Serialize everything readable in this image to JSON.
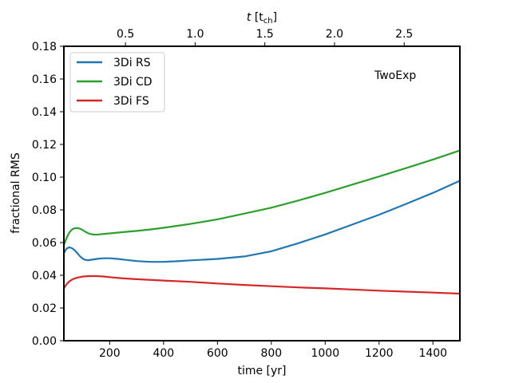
{
  "chart_data": {
    "type": "line",
    "xlabel": "time [yr]",
    "ylabel": "fractional RMS",
    "top_xlabel_var": "t",
    "top_xlabel_unit": "[t",
    "top_xlabel_sub": "ch",
    "top_xlabel_close": "]",
    "xlim": [
      30,
      1500
    ],
    "ylim": [
      0.0,
      0.18
    ],
    "x_ticks": [
      200,
      400,
      600,
      800,
      1000,
      1200,
      1400
    ],
    "x_tick_labels": [
      "200",
      "400",
      "600",
      "800",
      "1000",
      "1200",
      "1400"
    ],
    "y_ticks": [
      0.0,
      0.02,
      0.04,
      0.06,
      0.08,
      0.1,
      0.12,
      0.14,
      0.16,
      0.18
    ],
    "y_tick_labels": [
      "0.00",
      "0.02",
      "0.04",
      "0.06",
      "0.08",
      "0.10",
      "0.12",
      "0.14",
      "0.16",
      "0.18"
    ],
    "top_x_ticks": [
      0.5,
      1.0,
      1.5,
      2.0,
      2.5
    ],
    "top_x_tick_labels": [
      "0.5",
      "1.0",
      "1.5",
      "2.0",
      "2.5"
    ],
    "top_x_per_yr": 0.0019333,
    "annotation": "TwoExp",
    "legend_position": "upper-left",
    "series": [
      {
        "name": "3Di RS",
        "color": "#1f77b4",
        "x": [
          30,
          40,
          50,
          60,
          70,
          80,
          90,
          100,
          110,
          120,
          140,
          160,
          180,
          200,
          230,
          260,
          300,
          350,
          400,
          450,
          500,
          600,
          700,
          800,
          900,
          1000,
          1100,
          1200,
          1300,
          1400,
          1500
        ],
        "y": [
          0.0535,
          0.0563,
          0.0571,
          0.0566,
          0.0553,
          0.0535,
          0.0516,
          0.0502,
          0.0494,
          0.0492,
          0.0497,
          0.0502,
          0.0504,
          0.0504,
          0.05,
          0.0494,
          0.0487,
          0.0482,
          0.0482,
          0.0486,
          0.0491,
          0.05,
          0.0515,
          0.0547,
          0.0596,
          0.065,
          0.071,
          0.077,
          0.0836,
          0.0904,
          0.0978
        ]
      },
      {
        "name": "3Di CD",
        "color": "#2ca02c",
        "x": [
          30,
          40,
          50,
          60,
          70,
          80,
          90,
          100,
          110,
          120,
          130,
          140,
          150,
          160,
          180,
          200,
          250,
          300,
          350,
          400,
          500,
          600,
          700,
          800,
          900,
          1000,
          1100,
          1200,
          1300,
          1400,
          1500
        ],
        "y": [
          0.0585,
          0.0628,
          0.066,
          0.068,
          0.0688,
          0.0689,
          0.0685,
          0.0676,
          0.0666,
          0.0657,
          0.0652,
          0.0649,
          0.0649,
          0.065,
          0.0653,
          0.0656,
          0.0664,
          0.0671,
          0.068,
          0.069,
          0.0714,
          0.0742,
          0.0777,
          0.0813,
          0.0857,
          0.0904,
          0.0954,
          0.1004,
          0.1055,
          0.1108,
          0.1163
        ]
      },
      {
        "name": "3Di FS",
        "color": "#d62728",
        "x": [
          30,
          40,
          50,
          60,
          70,
          80,
          100,
          120,
          150,
          180,
          210,
          250,
          300,
          400,
          500,
          600,
          700,
          800,
          900,
          1000,
          1100,
          1200,
          1300,
          1400,
          1500
        ],
        "y": [
          0.032,
          0.0345,
          0.0362,
          0.0373,
          0.0381,
          0.0386,
          0.0392,
          0.0395,
          0.0395,
          0.0392,
          0.0387,
          0.0381,
          0.0376,
          0.0368,
          0.036,
          0.035,
          0.0341,
          0.0333,
          0.0326,
          0.032,
          0.0313,
          0.0306,
          0.03,
          0.0294,
          0.0288
        ]
      }
    ]
  }
}
